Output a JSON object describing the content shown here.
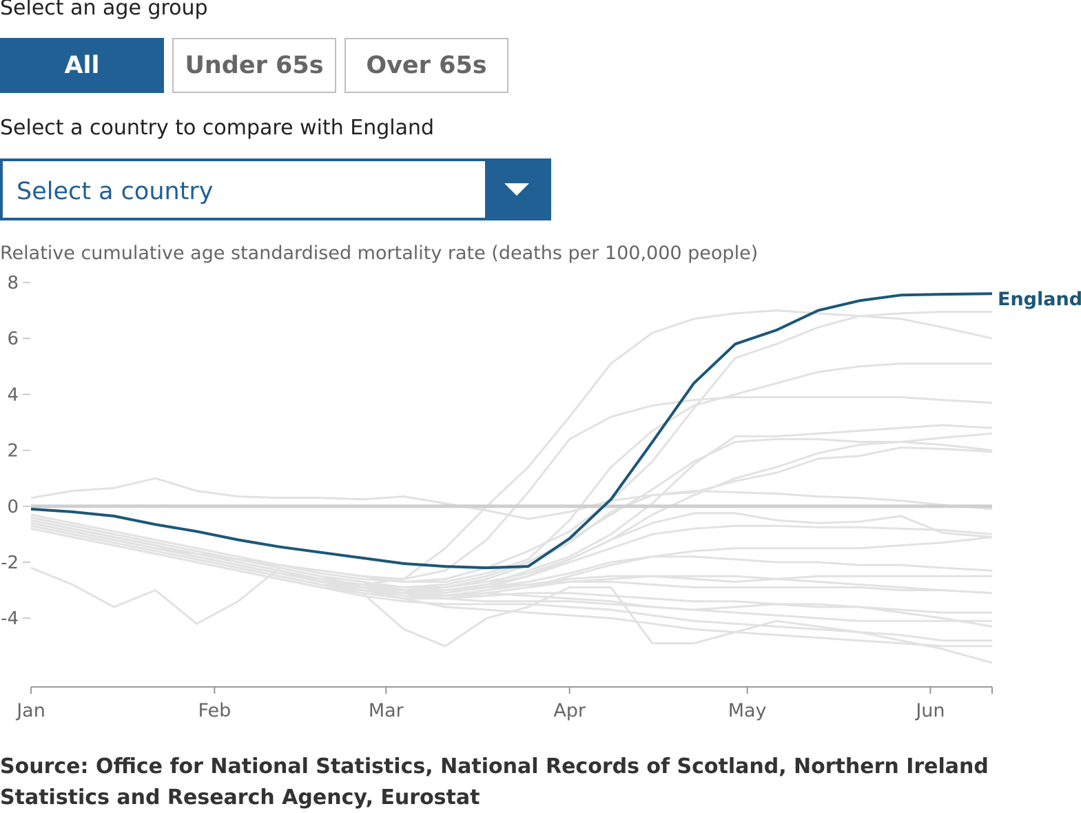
{
  "controls": {
    "age_label": "Select an age group",
    "age_buttons": [
      "All",
      "Under 65s",
      "Over 65s"
    ],
    "active_age": "All",
    "country_label": "Select a country to compare with England",
    "country_select_value": "Select a country"
  },
  "colors": {
    "accent": "#206095",
    "england": "#1b5778",
    "other_lines": "#e2e2e2",
    "zero_line": "#cfcfcf"
  },
  "source": "Source: Office for National Statistics, National Records of Scotland, Northern Ireland Statistics and Research Agency, Eurostat",
  "chart_data": {
    "type": "line",
    "ylabel": "Relative cumulative age standardised mortality rate (deaths per 100,000 people)",
    "ylim": [
      -6.3,
      8.2
    ],
    "y_ticks": [
      -4,
      -2,
      0,
      2,
      4,
      6,
      8
    ],
    "y_tick_labels": [
      "-4",
      "-2",
      "0",
      "2",
      "4",
      "6",
      "8"
    ],
    "xlim": [
      0,
      23.2
    ],
    "x_ticks": [
      0,
      4.43,
      8.57,
      13,
      17.29,
      21.71
    ],
    "x_tick_labels": [
      "Jan",
      "Feb",
      "Mar",
      "Apr",
      "May",
      "Jun"
    ],
    "x_unit": "weeks since 3 January",
    "grid": false,
    "zero_line": true,
    "highlight": {
      "name": "England",
      "x": [
        0,
        1,
        2,
        3,
        4,
        5,
        6,
        7,
        8,
        9,
        10,
        11,
        12,
        13,
        14,
        15,
        16,
        17,
        18,
        19,
        20,
        21,
        22,
        23.2
      ],
      "y": [
        -0.1,
        -0.2,
        -0.35,
        -0.65,
        -0.9,
        -1.2,
        -1.45,
        -1.65,
        -1.85,
        -2.05,
        -2.15,
        -2.2,
        -2.15,
        -1.15,
        0.25,
        2.3,
        4.4,
        5.8,
        6.3,
        7.0,
        7.35,
        7.55,
        7.58,
        7.6
      ]
    },
    "background_series": [
      {
        "x": [
          0,
          1,
          2,
          3,
          4,
          5,
          6,
          7,
          8,
          9,
          10,
          11,
          12,
          13,
          14,
          15,
          16,
          17,
          18,
          19,
          20,
          21,
          22,
          23.2
        ],
        "y": [
          0.3,
          0.55,
          0.65,
          1.0,
          0.55,
          0.35,
          0.3,
          0.3,
          0.25,
          0.35,
          0.1,
          -0.15,
          -0.45,
          -0.2,
          0.2,
          0.4,
          0.55,
          0.5,
          0.45,
          0.35,
          0.3,
          0.2,
          0.05,
          -0.1
        ]
      },
      {
        "x": [
          0,
          1,
          2,
          3,
          4,
          5,
          6,
          7,
          8,
          9,
          10,
          11,
          12,
          13,
          14,
          15,
          16,
          17,
          18,
          19,
          20,
          21,
          22,
          23.2
        ],
        "y": [
          -2.2,
          -2.8,
          -3.6,
          -3.0,
          -4.2,
          -3.4,
          -2.2,
          -2.5,
          -2.9,
          -3.0,
          -3.2,
          -3.1,
          -3.2,
          -3.3,
          -3.4,
          -3.6,
          -3.7,
          -3.6,
          -3.5,
          -3.5,
          -3.6,
          -3.8,
          -4.0,
          -4.3
        ]
      },
      {
        "x": [
          0,
          1,
          2,
          3,
          4,
          5,
          6,
          7,
          8,
          9,
          10,
          11,
          12,
          13,
          14,
          15,
          16,
          17,
          18,
          19,
          20,
          21,
          22,
          23.2
        ],
        "y": [
          -0.6,
          -0.9,
          -1.2,
          -1.5,
          -1.7,
          -2.0,
          -2.3,
          -2.6,
          -2.8,
          -2.6,
          -1.5,
          0.0,
          1.4,
          3.2,
          5.1,
          6.2,
          6.7,
          6.9,
          7.0,
          6.9,
          6.8,
          6.7,
          6.4,
          6.0
        ]
      },
      {
        "x": [
          0,
          1,
          2,
          3,
          4,
          5,
          6,
          7,
          8,
          9,
          10,
          11,
          12,
          13,
          14,
          15,
          16,
          17,
          18,
          19,
          20,
          21,
          22,
          23.2
        ],
        "y": [
          -0.5,
          -0.8,
          -1.1,
          -1.4,
          -1.7,
          -1.9,
          -2.1,
          -2.3,
          -2.5,
          -2.6,
          -2.3,
          -1.2,
          0.5,
          2.4,
          3.2,
          3.6,
          3.8,
          3.9,
          3.9,
          3.9,
          3.9,
          3.9,
          3.8,
          3.7
        ]
      },
      {
        "x": [
          0,
          1,
          2,
          3,
          4,
          5,
          6,
          7,
          8,
          9,
          10,
          11,
          12,
          13,
          14,
          15,
          16,
          17,
          18,
          19,
          20,
          21,
          22,
          23.2
        ],
        "y": [
          -0.4,
          -0.7,
          -1.0,
          -1.3,
          -1.6,
          -1.9,
          -2.1,
          -2.3,
          -2.5,
          -2.7,
          -2.7,
          -2.4,
          -1.9,
          -0.5,
          1.4,
          2.7,
          3.6,
          4.0,
          4.4,
          4.8,
          5.0,
          5.1,
          5.1,
          5.1
        ]
      },
      {
        "x": [
          0,
          1,
          2,
          3,
          4,
          5,
          6,
          7,
          8,
          9,
          10,
          11,
          12,
          13,
          14,
          15,
          16,
          17,
          18,
          19,
          20,
          21,
          22,
          23.2
        ],
        "y": [
          -0.3,
          -0.6,
          -0.9,
          -1.2,
          -1.5,
          -1.8,
          -2.1,
          -2.4,
          -2.6,
          -2.7,
          -2.6,
          -2.2,
          -1.6,
          -0.9,
          0.2,
          1.6,
          3.5,
          5.3,
          5.8,
          6.4,
          6.8,
          6.9,
          6.95,
          6.95
        ]
      },
      {
        "x": [
          0,
          1,
          2,
          3,
          4,
          5,
          6,
          7,
          8,
          9,
          10,
          11,
          12,
          13,
          14,
          15,
          16,
          17,
          18,
          19,
          20,
          21,
          22,
          23.2
        ],
        "y": [
          -0.6,
          -0.9,
          -1.2,
          -1.5,
          -1.8,
          -2.1,
          -2.4,
          -2.6,
          -2.8,
          -2.9,
          -2.8,
          -2.5,
          -2.0,
          -1.2,
          -0.3,
          0.6,
          1.6,
          2.3,
          2.4,
          2.4,
          2.3,
          2.3,
          2.2,
          2.0
        ]
      },
      {
        "x": [
          0,
          1,
          2,
          3,
          4,
          5,
          6,
          7,
          8,
          9,
          10,
          11,
          12,
          13,
          14,
          15,
          16,
          17,
          18,
          19,
          20,
          21,
          22,
          23.2
        ],
        "y": [
          -0.7,
          -1.0,
          -1.3,
          -1.6,
          -1.9,
          -2.2,
          -2.5,
          -2.8,
          -3.0,
          -3.1,
          -3.0,
          -2.8,
          -2.3,
          -1.8,
          -1.0,
          0.1,
          1.5,
          2.5,
          2.5,
          2.6,
          2.7,
          2.8,
          2.9,
          2.8
        ]
      },
      {
        "x": [
          0,
          1,
          2,
          3,
          4,
          5,
          6,
          7,
          8,
          9,
          10,
          11,
          12,
          13,
          14,
          15,
          16,
          17,
          18,
          19,
          20,
          21,
          22,
          23.2
        ],
        "y": [
          -0.5,
          -0.8,
          -1.1,
          -1.4,
          -1.7,
          -2.0,
          -2.3,
          -2.6,
          -2.8,
          -3.0,
          -3.1,
          -2.9,
          -2.5,
          -1.9,
          -1.2,
          -0.3,
          0.4,
          1.0,
          1.4,
          1.9,
          2.2,
          2.3,
          2.45,
          2.6
        ]
      },
      {
        "x": [
          0,
          1,
          2,
          3,
          4,
          5,
          6,
          7,
          8,
          9,
          10,
          11,
          12,
          13,
          14,
          15,
          16,
          17,
          18,
          19,
          20,
          21,
          22,
          23.2
        ],
        "y": [
          -0.4,
          -0.7,
          -1.0,
          -1.3,
          -1.6,
          -1.9,
          -2.2,
          -2.5,
          -2.7,
          -2.9,
          -2.9,
          -2.6,
          -2.1,
          -1.3,
          -0.2,
          0.4,
          0.5,
          0.9,
          1.2,
          1.7,
          1.8,
          2.1,
          2.05,
          1.95
        ]
      },
      {
        "x": [
          0,
          1,
          2,
          3,
          4,
          5,
          6,
          7,
          8,
          9,
          10,
          11,
          12,
          13,
          14,
          15,
          16,
          17,
          18,
          19,
          20,
          21,
          22,
          23.2
        ],
        "y": [
          -0.6,
          -0.9,
          -1.2,
          -1.5,
          -1.8,
          -2.1,
          -2.4,
          -2.7,
          -2.9,
          -3.0,
          -2.9,
          -2.7,
          -2.4,
          -1.9,
          -1.2,
          -0.6,
          -0.25,
          -0.25,
          -0.5,
          -0.6,
          -0.55,
          -0.35,
          -0.95,
          -1.1
        ]
      },
      {
        "x": [
          0,
          1,
          2,
          3,
          4,
          5,
          6,
          7,
          8,
          9,
          10,
          11,
          12,
          13,
          14,
          15,
          16,
          17,
          18,
          19,
          20,
          21,
          22,
          23.2
        ],
        "y": [
          -0.7,
          -1.0,
          -1.3,
          -1.6,
          -1.9,
          -2.2,
          -2.5,
          -2.8,
          -3.0,
          -3.1,
          -3.0,
          -2.8,
          -2.5,
          -2.0,
          -1.5,
          -1.0,
          -0.8,
          -0.7,
          -0.7,
          -0.75,
          -0.75,
          -0.8,
          -0.85,
          -1.0
        ]
      },
      {
        "x": [
          0,
          1,
          2,
          3,
          4,
          5,
          6,
          7,
          8,
          9,
          10,
          11,
          12,
          13,
          14,
          15,
          16,
          17,
          18,
          19,
          20,
          21,
          22,
          23.2
        ],
        "y": [
          -0.5,
          -0.8,
          -1.1,
          -1.4,
          -1.7,
          -2.0,
          -2.3,
          -2.6,
          -2.9,
          -3.1,
          -3.2,
          -3.1,
          -2.9,
          -2.5,
          -2.1,
          -1.8,
          -1.6,
          -1.5,
          -1.5,
          -1.5,
          -1.5,
          -1.4,
          -1.3,
          -1.1
        ]
      },
      {
        "x": [
          0,
          1,
          2,
          3,
          4,
          5,
          6,
          7,
          8,
          9,
          10,
          11,
          12,
          13,
          14,
          15,
          16,
          17,
          18,
          19,
          20,
          21,
          22,
          23.2
        ],
        "y": [
          -0.6,
          -0.9,
          -1.2,
          -1.5,
          -1.8,
          -2.1,
          -2.4,
          -2.7,
          -2.9,
          -3.1,
          -3.1,
          -2.9,
          -2.7,
          -2.4,
          -2.0,
          -1.8,
          -1.8,
          -1.9,
          -2.0,
          -2.0,
          -2.1,
          -2.1,
          -2.2,
          -2.3
        ]
      },
      {
        "x": [
          0,
          1,
          2,
          3,
          4,
          5,
          6,
          7,
          8,
          9,
          10,
          11,
          12,
          13,
          14,
          15,
          16,
          17,
          18,
          19,
          20,
          21,
          22,
          23.2
        ],
        "y": [
          -0.7,
          -1.0,
          -1.3,
          -1.6,
          -1.9,
          -2.2,
          -2.5,
          -2.8,
          -3.0,
          -3.2,
          -3.2,
          -3.0,
          -2.8,
          -2.6,
          -2.5,
          -2.5,
          -2.6,
          -2.7,
          -2.6,
          -2.5,
          -2.5,
          -2.5,
          -2.5,
          -2.5
        ]
      },
      {
        "x": [
          0,
          1,
          2,
          3,
          4,
          5,
          6,
          7,
          8,
          9,
          10,
          11,
          12,
          13,
          14,
          15,
          16,
          17,
          18,
          19,
          20,
          21,
          22,
          23.2
        ],
        "y": [
          -0.8,
          -1.1,
          -1.4,
          -1.7,
          -2.0,
          -2.3,
          -2.6,
          -2.9,
          -3.1,
          -3.3,
          -3.3,
          -3.1,
          -2.9,
          -2.7,
          -2.7,
          -2.8,
          -2.9,
          -2.9,
          -2.9,
          -2.9,
          -2.9,
          -3.0,
          -3.0,
          -3.1
        ]
      },
      {
        "x": [
          0,
          1,
          2,
          3,
          4,
          5,
          6,
          7,
          8,
          9,
          10,
          11,
          12,
          13,
          14,
          15,
          16,
          17,
          18,
          19,
          20,
          21,
          22,
          23.2
        ],
        "y": [
          -0.6,
          -0.9,
          -1.2,
          -1.5,
          -1.8,
          -2.1,
          -2.4,
          -2.7,
          -3.0,
          -3.2,
          -3.3,
          -3.2,
          -3.1,
          -3.1,
          -3.2,
          -3.3,
          -3.4,
          -3.4,
          -3.5,
          -3.6,
          -3.6,
          -3.7,
          -3.8,
          -3.8
        ]
      },
      {
        "x": [
          0,
          1,
          2,
          3,
          4,
          5,
          6,
          7,
          8,
          9,
          10,
          11,
          12,
          13,
          14,
          15,
          16,
          17,
          18,
          19,
          20,
          21,
          22,
          23.2
        ],
        "y": [
          -0.5,
          -0.8,
          -1.1,
          -1.4,
          -1.7,
          -2.0,
          -2.3,
          -2.6,
          -2.9,
          -3.1,
          -3.3,
          -3.4,
          -3.4,
          -3.4,
          -3.5,
          -3.6,
          -3.7,
          -3.8,
          -3.9,
          -4.0,
          -4.1,
          -4.1,
          -4.1,
          -4.1
        ]
      },
      {
        "x": [
          0,
          1,
          2,
          3,
          4,
          5,
          6,
          7,
          8,
          9,
          10,
          11,
          12,
          13,
          14,
          15,
          16,
          17,
          18,
          19,
          20,
          21,
          22,
          23.2
        ],
        "y": [
          -0.6,
          -0.9,
          -1.2,
          -1.5,
          -1.8,
          -2.1,
          -2.4,
          -2.7,
          -3.0,
          -3.3,
          -3.6,
          -3.7,
          -3.8,
          -3.9,
          -4.0,
          -4.2,
          -4.4,
          -4.5,
          -4.6,
          -4.7,
          -4.8,
          -4.9,
          -5.0,
          -5.0
        ]
      },
      {
        "x": [
          0,
          1,
          2,
          3,
          4,
          5,
          6,
          7,
          8,
          9,
          10,
          11,
          12,
          13,
          14,
          15,
          16,
          17,
          18,
          19,
          20,
          21,
          22,
          23.2
        ],
        "y": [
          -0.7,
          -1.0,
          -1.3,
          -1.6,
          -1.9,
          -2.2,
          -2.5,
          -2.8,
          -3.1,
          -4.4,
          -5.0,
          -4.0,
          -3.6,
          -2.9,
          -2.9,
          -4.9,
          -4.9,
          -4.5,
          -4.1,
          -4.3,
          -4.5,
          -4.8,
          -5.1,
          -5.6
        ]
      },
      {
        "x": [
          0,
          1,
          2,
          3,
          4,
          5,
          6,
          7,
          8,
          9,
          10,
          11,
          12,
          13,
          14,
          15,
          16,
          17,
          18,
          19,
          20,
          21,
          22,
          23.2
        ],
        "y": [
          -0.8,
          -1.1,
          -1.4,
          -1.7,
          -2.0,
          -2.3,
          -2.6,
          -2.9,
          -3.2,
          -3.4,
          -3.5,
          -3.5,
          -3.5,
          -3.6,
          -3.7,
          -3.9,
          -4.1,
          -4.2,
          -4.3,
          -4.4,
          -4.5,
          -4.6,
          -4.8,
          -4.8
        ]
      },
      {
        "x": [
          0,
          1,
          2,
          3,
          4,
          5,
          6,
          7,
          8,
          9,
          10,
          11,
          12,
          13,
          14,
          15,
          16,
          17,
          18,
          19,
          20,
          21,
          22,
          23.2
        ],
        "y": [
          -0.6,
          -0.9,
          -1.2,
          -1.5,
          -1.8,
          -2.1,
          -2.4,
          -2.7,
          -2.9,
          -3.0,
          -3.0,
          -2.9,
          -2.8,
          -2.7,
          -2.6,
          -2.5,
          -2.5,
          -2.5,
          -2.6,
          -2.7,
          -2.8,
          -2.9,
          -3.0,
          -3.1
        ]
      }
    ]
  }
}
